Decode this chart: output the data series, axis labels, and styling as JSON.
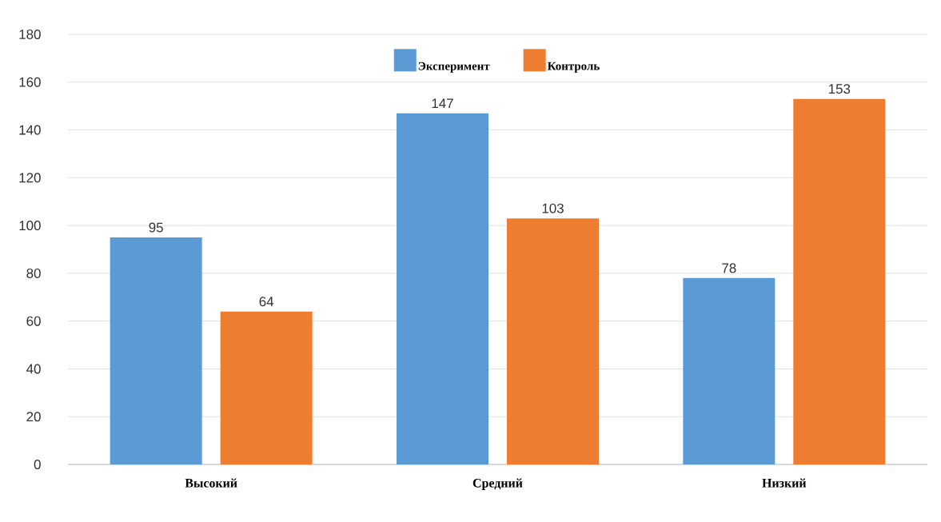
{
  "chart_data": {
    "type": "bar",
    "categories": [
      "Высокий",
      "Средний",
      "Низкий"
    ],
    "series": [
      {
        "name": "Эксперимент",
        "color": "#5b9bd5",
        "values": [
          95,
          147,
          78
        ]
      },
      {
        "name": "Контроль",
        "color": "#ed7d31",
        "values": [
          64,
          103,
          153
        ]
      }
    ],
    "ylim": [
      0,
      180
    ],
    "yticks": [
      0,
      20,
      40,
      60,
      80,
      100,
      120,
      140,
      160,
      180
    ],
    "grid": "y",
    "legend": "top",
    "data_labels": true
  }
}
